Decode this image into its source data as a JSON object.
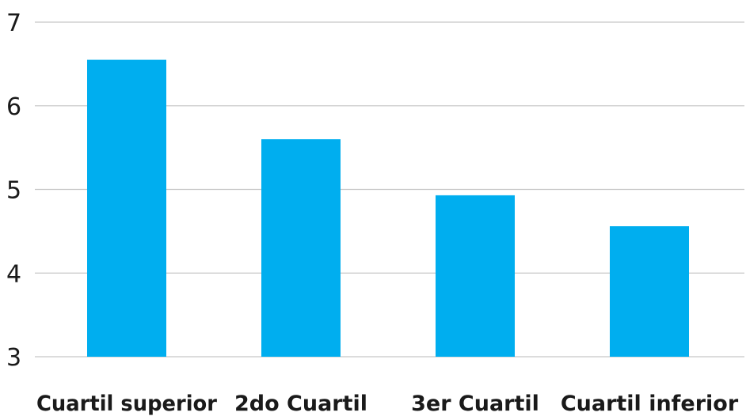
{
  "chart_data": {
    "type": "bar",
    "categories": [
      "Cuartil superior",
      "2do Cuartil",
      "3er Cuartil",
      "Cuartil inferior"
    ],
    "values": [
      6.55,
      5.6,
      4.93,
      4.56
    ],
    "ylim": [
      3,
      7
    ],
    "yticks": [
      3,
      4,
      5,
      6,
      7
    ],
    "grid": true,
    "bar_color": "#00aeef",
    "title": "",
    "xlabel": "",
    "ylabel": ""
  }
}
